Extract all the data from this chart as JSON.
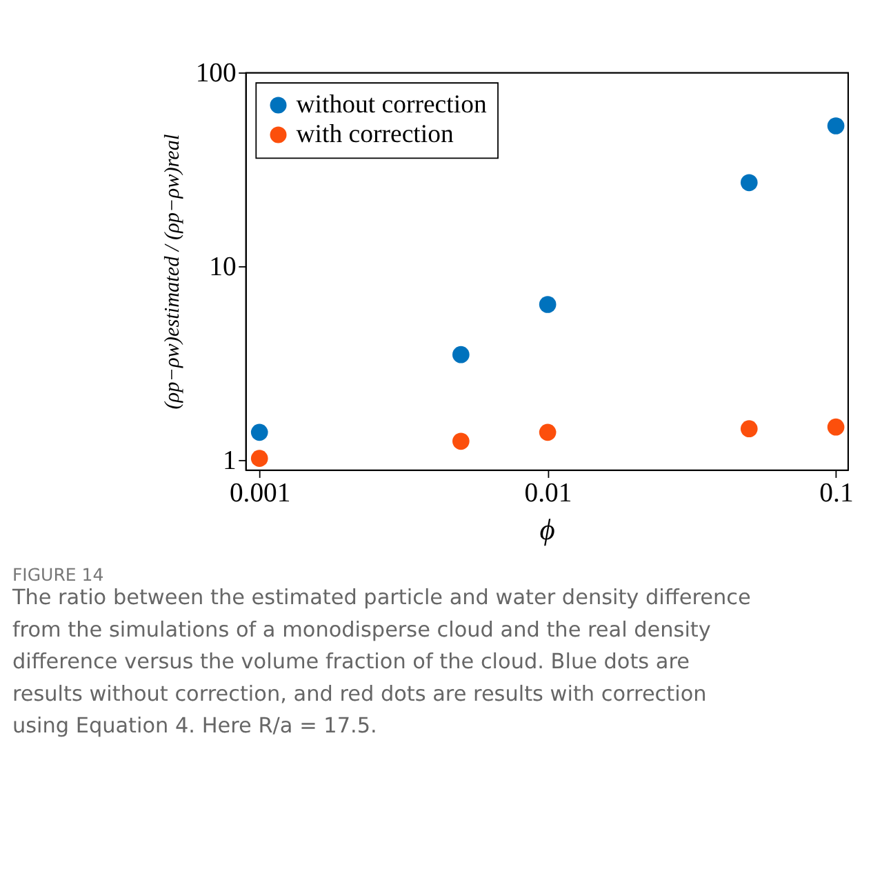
{
  "chart_data": {
    "type": "scatter",
    "xlabel": "ϕ",
    "ylabel": "(ρp−ρw)estimated / (ρp−ρw)real",
    "x": [
      0.001,
      0.005,
      0.01,
      0.05,
      0.1
    ],
    "series": [
      {
        "name": "without correction",
        "color": "#0072bd",
        "values": [
          1.39,
          3.5,
          6.35,
          27,
          53
        ]
      },
      {
        "name": "with correction",
        "color": "#fc4f0c",
        "values": [
          1.02,
          1.25,
          1.39,
          1.45,
          1.48
        ]
      }
    ],
    "log": "xy",
    "xlim": [
      0.000895,
      0.11
    ],
    "ylim": [
      0.89,
      100
    ],
    "xticks": [
      0.001,
      0.01,
      0.1
    ],
    "yticks": [
      1,
      10,
      100
    ],
    "grid": false,
    "legend": "top left",
    "marker": "circle",
    "annotations": [
      "FIGURE 14",
      "The ratio between the estimated particle and water density difference from the simulations of a monodisperse cloud and the real density difference versus the volume fraction of the cloud. Blue dots are results without correction, and red dots are results with correction using Equation 4. Here R/a = 17.5."
    ]
  }
}
